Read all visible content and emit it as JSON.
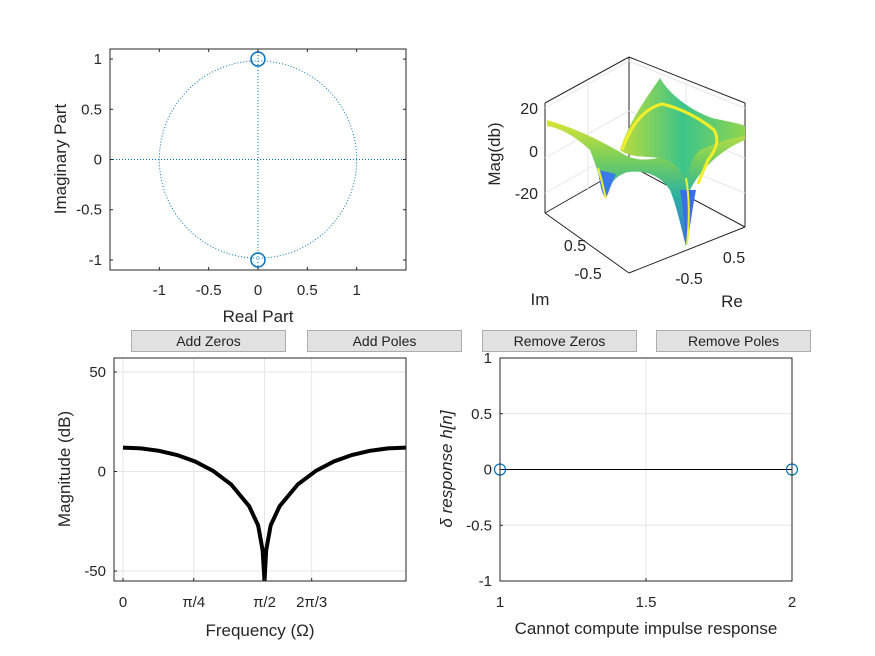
{
  "buttons": {
    "add_zeros": "Add Zeros",
    "add_poles": "Add Poles",
    "remove_zeros": "Remove Zeros",
    "remove_poles": "Remove Poles"
  },
  "colors": {
    "axis": "#262626",
    "marker": "#0072BD",
    "grid": "#e6e6e6",
    "curve": "#000000"
  },
  "chart_data": [
    {
      "type": "scatter",
      "xlabel": "Real Part",
      "ylabel": "Imaginary Part",
      "xlim": [
        -1.5,
        1.5
      ],
      "ylim": [
        -1.1,
        1.1
      ],
      "xticks": [
        -1,
        -0.5,
        0,
        0.5,
        1
      ],
      "yticks": [
        -1,
        -0.5,
        0,
        0.5,
        1
      ],
      "xtick_labels": [
        "-1",
        "-0.5",
        "0",
        "0.5",
        "1"
      ],
      "ytick_labels": [
        "-1",
        "-0.5",
        "0",
        "0.5",
        "1"
      ],
      "zeros": [
        {
          "re": 0,
          "im": 1
        },
        {
          "re": 0,
          "im": -1
        }
      ],
      "poles": [],
      "unit_circle": true,
      "grid": false
    },
    {
      "type": "surface",
      "zlabel": "Mag(db)",
      "xlabel": "Re",
      "ylabel": "Im",
      "zticks": [
        -20,
        0,
        20
      ],
      "ztick_labels": [
        "-20",
        "0",
        "20"
      ],
      "re_tick_labels": [
        "-0.5",
        "0.5"
      ],
      "im_tick_labels": [
        "0.5",
        "-0.5"
      ],
      "zlim": [
        -30,
        30
      ],
      "grid": true
    },
    {
      "type": "line",
      "xlabel": "Frequency (Ω)",
      "ylabel": "Magnitude (dB)",
      "xtick_values": [
        0,
        0.785398,
        1.570796,
        2.094395
      ],
      "xtick_labels": [
        "0",
        "π/4",
        "π/2",
        "2π/3"
      ],
      "ytick_values": [
        -50,
        0,
        50
      ],
      "ytick_labels": [
        "-50",
        "0",
        "50"
      ],
      "xlim": [
        -0.1,
        3.1416
      ],
      "ylim": [
        -55,
        57
      ],
      "series": [
        {
          "x": [
            0,
            0.2,
            0.4,
            0.6,
            0.8,
            1.0,
            1.2,
            1.4,
            1.5,
            1.55,
            1.5708,
            1.59,
            1.64,
            1.74,
            1.94,
            2.14,
            2.34,
            2.54,
            2.74,
            2.94,
            3.14
          ],
          "values": [
            12.0,
            11.6,
            10.4,
            8.3,
            5.0,
            0.3,
            -6.5,
            -17.4,
            -27.0,
            -39.5,
            -55.0,
            -39.5,
            -27.0,
            -17.4,
            -6.5,
            0.3,
            5.0,
            8.3,
            10.4,
            11.6,
            12.0
          ]
        }
      ],
      "grid": true
    },
    {
      "type": "stem",
      "xlabel": "Cannot compute impulse response",
      "ylabel": "δ response h[n]",
      "xlim": [
        1,
        2
      ],
      "ylim": [
        -1,
        1
      ],
      "xticks": [
        1,
        1.5,
        2
      ],
      "yticks": [
        -1,
        -0.5,
        0,
        0.5,
        1
      ],
      "xtick_labels": [
        "1",
        "1.5",
        "2"
      ],
      "ytick_labels": [
        "-1",
        "-0.5",
        "0",
        "0.5",
        "1"
      ],
      "x": [
        1,
        2
      ],
      "values": [
        0,
        0
      ],
      "grid": true
    }
  ]
}
